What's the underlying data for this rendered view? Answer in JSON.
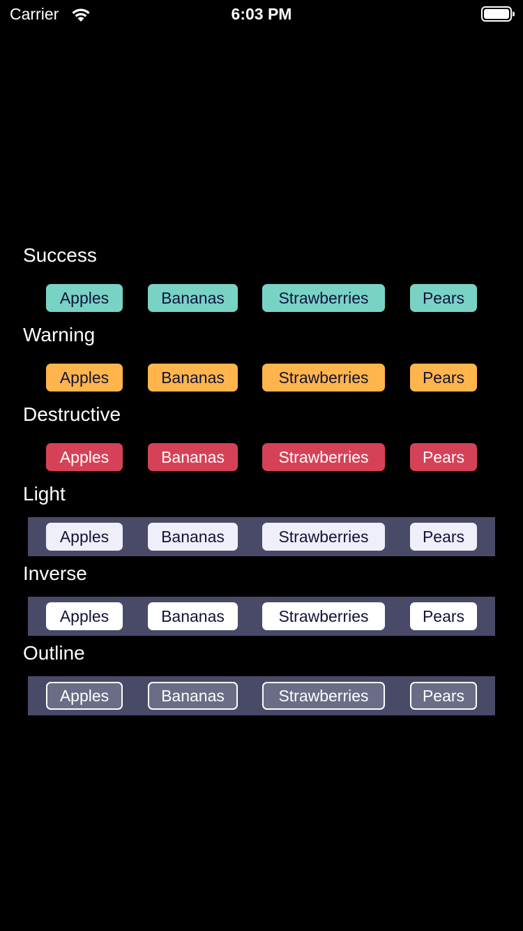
{
  "status_bar": {
    "carrier": "Carrier",
    "time": "6:03 PM",
    "icons": [
      "wifi-icon",
      "battery-icon"
    ]
  },
  "colors": {
    "background": "#000000",
    "row_tint": "#494a68",
    "success": "#78d3c5",
    "warning": "#ffb54c",
    "destructive": "#d54257",
    "light": "#eeeff8",
    "inverse": "#ffffff",
    "outline_fill": "#6b6c86",
    "dark_text": "#12133a"
  },
  "sections": [
    {
      "label": "Success",
      "badges": [
        "Apples",
        "Bananas",
        "Strawberries",
        "Pears"
      ]
    },
    {
      "label": "Warning",
      "badges": [
        "Apples",
        "Bananas",
        "Strawberries",
        "Pears"
      ]
    },
    {
      "label": "Destructive",
      "badges": [
        "Apples",
        "Bananas",
        "Strawberries",
        "Pears"
      ]
    },
    {
      "label": "Light",
      "badges": [
        "Apples",
        "Bananas",
        "Strawberries",
        "Pears"
      ]
    },
    {
      "label": "Inverse",
      "badges": [
        "Apples",
        "Bananas",
        "Strawberries",
        "Pears"
      ]
    },
    {
      "label": "Outline",
      "badges": [
        "Apples",
        "Bananas",
        "Strawberries",
        "Pears"
      ]
    }
  ]
}
